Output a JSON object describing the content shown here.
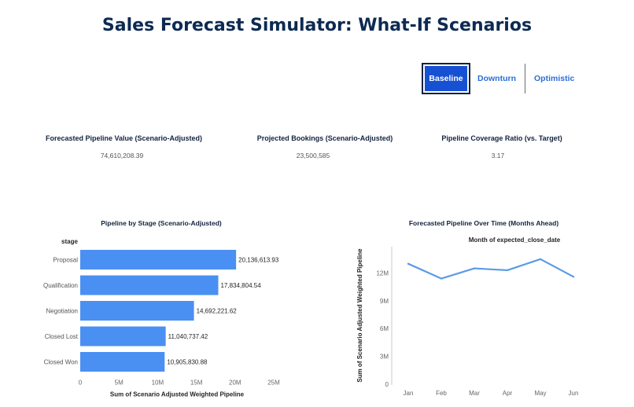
{
  "page": {
    "title": "Sales Forecast Simulator: What-If Scenarios"
  },
  "scenarios": {
    "items": [
      "Baseline",
      "Downturn",
      "Optimistic"
    ],
    "selected": "Baseline"
  },
  "kpis": [
    {
      "label": "Forecasted Pipeline Value (Scenario-Adjusted)",
      "value": "74,610,208.39"
    },
    {
      "label": "Projected Bookings (Scenario-Adjusted)",
      "value": "23,500,585"
    },
    {
      "label": "Pipeline Coverage Ratio (vs. Target)",
      "value": "3.17"
    }
  ],
  "colors": {
    "bar": "#4a8ff2",
    "line": "#5b9be8",
    "accent": "#1651d3"
  },
  "chart_data": [
    {
      "type": "bar",
      "orientation": "horizontal",
      "title": "Pipeline by Stage (Scenario-Adjusted)",
      "category_label": "stage",
      "xlabel": "Sum of Scenario Adjusted Weighted Pipeline",
      "categories": [
        "Proposal",
        "Qualification",
        "Negotiation",
        "Closed Lost",
        "Closed Won"
      ],
      "values": [
        20136613.93,
        17834804.54,
        14692221.62,
        11040737.42,
        10905830.88
      ],
      "data_labels": [
        "20,136,613.93",
        "17,834,804.54",
        "14,692,221.62",
        "11,040,737.42",
        "10,905,830.88"
      ],
      "xlim": [
        0,
        25000000
      ],
      "x_ticks": [
        0,
        5000000,
        10000000,
        15000000,
        20000000,
        25000000
      ],
      "x_tick_labels": [
        "0",
        "5M",
        "10M",
        "15M",
        "20M",
        "25M"
      ],
      "grid": false
    },
    {
      "type": "line",
      "title": "Forecasted Pipeline Over Time (Months Ahead)",
      "subtitle": "Month of expected_close_date",
      "ylabel": "Sum of Scenario Adjusted Weighted Pipeline",
      "x": [
        "Jan",
        "Feb",
        "Mar",
        "Apr",
        "May",
        "Jun"
      ],
      "values": [
        13000000,
        11400000,
        12500000,
        12300000,
        13500000,
        11600000
      ],
      "ylim": [
        0,
        14500000
      ],
      "y_ticks": [
        0,
        3000000,
        6000000,
        9000000,
        12000000
      ],
      "y_tick_labels": [
        "0",
        "3M",
        "6M",
        "9M",
        "12M"
      ],
      "grid": false
    }
  ]
}
